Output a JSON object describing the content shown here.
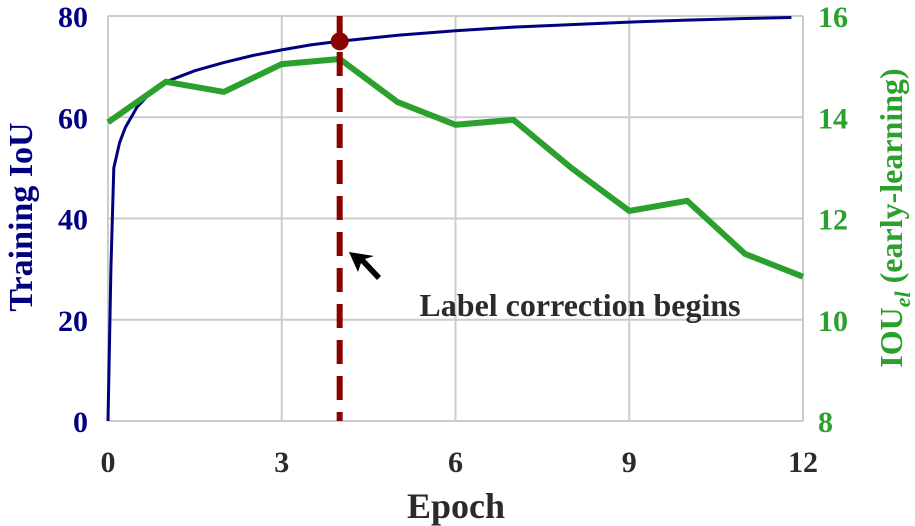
{
  "chart_data": {
    "type": "line",
    "xlabel": "Epoch",
    "x_ticks": [
      "0",
      "3",
      "6",
      "9",
      "12"
    ],
    "xlim": [
      0,
      12
    ],
    "grid": true,
    "left_axis": {
      "label": "Training IoU",
      "ylim": [
        0,
        80
      ],
      "ticks": [
        "0",
        "20",
        "40",
        "60",
        "80"
      ],
      "color": "#000080"
    },
    "right_axis": {
      "label_main": "IOU",
      "label_sub": "el",
      "label_rest": "  (early-learning)",
      "ylim": [
        8,
        16
      ],
      "ticks": [
        "8",
        "10",
        "12",
        "14",
        "16"
      ],
      "color": "#2ca02c"
    },
    "series": [
      {
        "axis": "left",
        "color": "#000080",
        "points": [
          [
            0,
            0
          ],
          [
            0.05,
            30
          ],
          [
            0.1,
            50
          ],
          [
            0.2,
            55
          ],
          [
            0.3,
            58
          ],
          [
            0.5,
            62
          ],
          [
            0.75,
            65
          ],
          [
            1,
            67
          ],
          [
            1.5,
            69.2
          ],
          [
            2,
            70.8
          ],
          [
            2.5,
            72.2
          ],
          [
            3,
            73.3
          ],
          [
            3.5,
            74.3
          ],
          [
            4,
            75
          ],
          [
            5,
            76.2
          ],
          [
            6,
            77.1
          ],
          [
            7,
            77.8
          ],
          [
            8,
            78.3
          ],
          [
            9,
            78.8
          ],
          [
            10,
            79.2
          ],
          [
            11,
            79.5
          ],
          [
            11.8,
            79.7
          ]
        ]
      },
      {
        "axis": "right",
        "color": "#2ca02c",
        "points": [
          [
            0,
            13.9
          ],
          [
            1,
            14.7
          ],
          [
            2,
            14.5
          ],
          [
            3,
            15.05
          ],
          [
            4,
            15.15
          ],
          [
            5,
            14.3
          ],
          [
            6,
            13.85
          ],
          [
            7,
            13.95
          ],
          [
            8,
            13.0
          ],
          [
            9,
            12.15
          ],
          [
            10,
            12.35
          ],
          [
            11,
            11.3
          ],
          [
            12,
            10.85
          ]
        ]
      }
    ],
    "marker": {
      "x": 4,
      "y": 75,
      "color": "#8b0000"
    },
    "vline": {
      "x": 4,
      "color": "#8b0000",
      "style": "dashed"
    },
    "annotation": {
      "text": "Label correction begins"
    }
  }
}
